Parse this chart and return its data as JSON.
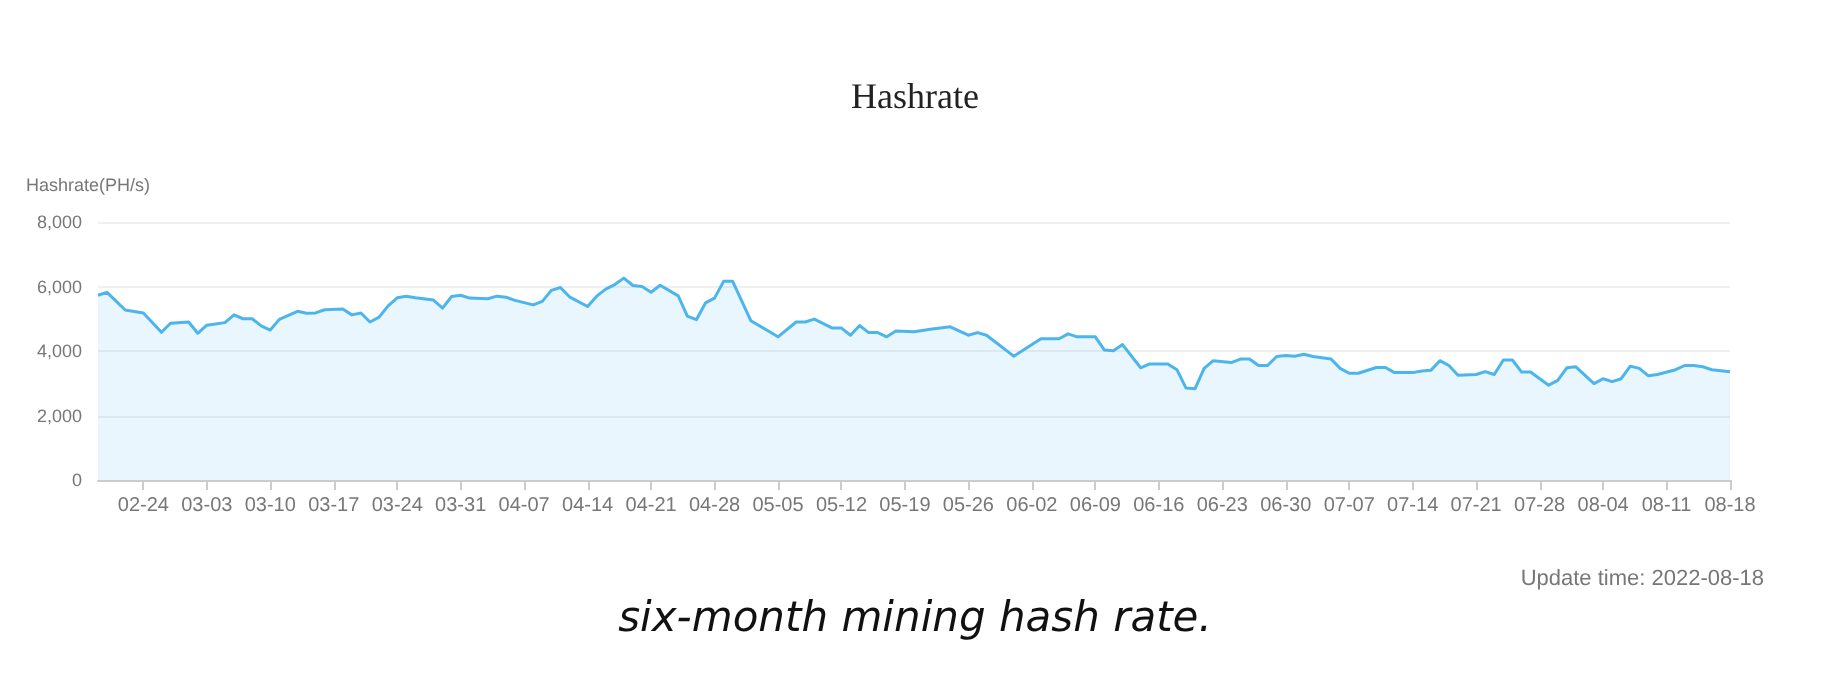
{
  "chart_data": {
    "type": "area",
    "title": "Hashrate",
    "ylabel": "Hashrate(PH/s)",
    "annotations": [
      "Update time: 2022-08-18",
      "six-month mining hash rate."
    ],
    "x": [
      "2022-02-19",
      "2022-02-20",
      "2022-02-22",
      "2022-02-24",
      "2022-02-26",
      "2022-02-27",
      "2022-03-01",
      "2022-03-02",
      "2022-03-03",
      "2022-03-05",
      "2022-03-06",
      "2022-03-07",
      "2022-03-08",
      "2022-03-09",
      "2022-03-10",
      "2022-03-11",
      "2022-03-13",
      "2022-03-14",
      "2022-03-15",
      "2022-03-16",
      "2022-03-18",
      "2022-03-19",
      "2022-03-20",
      "2022-03-21",
      "2022-03-22",
      "2022-03-23",
      "2022-03-24",
      "2022-03-25",
      "2022-03-26",
      "2022-03-28",
      "2022-03-29",
      "2022-03-30",
      "2022-03-31",
      "2022-04-01",
      "2022-04-03",
      "2022-04-04",
      "2022-04-05",
      "2022-04-06",
      "2022-04-08",
      "2022-04-09",
      "2022-04-10",
      "2022-04-11",
      "2022-04-12",
      "2022-04-14",
      "2022-04-15",
      "2022-04-16",
      "2022-04-17",
      "2022-04-18",
      "2022-04-19",
      "2022-04-20",
      "2022-04-21",
      "2022-04-22",
      "2022-04-24",
      "2022-04-25",
      "2022-04-26",
      "2022-04-27",
      "2022-04-28",
      "2022-04-29",
      "2022-04-30",
      "2022-05-02",
      "2022-05-05",
      "2022-05-07",
      "2022-05-08",
      "2022-05-09",
      "2022-05-11",
      "2022-05-12",
      "2022-05-13",
      "2022-05-14",
      "2022-05-15",
      "2022-05-16",
      "2022-05-17",
      "2022-05-18",
      "2022-05-20",
      "2022-05-22",
      "2022-05-24",
      "2022-05-26",
      "2022-05-27",
      "2022-05-28",
      "2022-05-31",
      "2022-06-03",
      "2022-06-05",
      "2022-06-06",
      "2022-06-07",
      "2022-06-09",
      "2022-06-10",
      "2022-06-11",
      "2022-06-12",
      "2022-06-14",
      "2022-06-15",
      "2022-06-17",
      "2022-06-18",
      "2022-06-19",
      "2022-06-20",
      "2022-06-21",
      "2022-06-22",
      "2022-06-24",
      "2022-06-25",
      "2022-06-26",
      "2022-06-27",
      "2022-06-28",
      "2022-06-29",
      "2022-06-30",
      "2022-07-01",
      "2022-07-02",
      "2022-07-03",
      "2022-07-05",
      "2022-07-06",
      "2022-07-07",
      "2022-07-08",
      "2022-07-10",
      "2022-07-11",
      "2022-07-12",
      "2022-07-14",
      "2022-07-15",
      "2022-07-16",
      "2022-07-17",
      "2022-07-18",
      "2022-07-19",
      "2022-07-21",
      "2022-07-22",
      "2022-07-23",
      "2022-07-24",
      "2022-07-25",
      "2022-07-26",
      "2022-07-27",
      "2022-07-29",
      "2022-07-30",
      "2022-07-31",
      "2022-08-01",
      "2022-08-03",
      "2022-08-04",
      "2022-08-05",
      "2022-08-06",
      "2022-08-07",
      "2022-08-08",
      "2022-08-09",
      "2022-08-10",
      "2022-08-12",
      "2022-08-13",
      "2022-08-14",
      "2022-08-15",
      "2022-08-16",
      "2022-08-18"
    ],
    "series": [
      {
        "color": "#4cb5ec",
        "values": [
          5730,
          5820,
          5270,
          5180,
          4580,
          4860,
          4900,
          4550,
          4800,
          4880,
          5120,
          5000,
          5000,
          4780,
          4650,
          4980,
          5230,
          5170,
          5180,
          5280,
          5300,
          5120,
          5180,
          4900,
          5050,
          5400,
          5650,
          5700,
          5650,
          5580,
          5330,
          5690,
          5730,
          5640,
          5620,
          5700,
          5670,
          5570,
          5430,
          5540,
          5880,
          5970,
          5680,
          5380,
          5700,
          5920,
          6060,
          6260,
          6030,
          6000,
          5820,
          6040,
          5710,
          5080,
          4970,
          5490,
          5640,
          6160,
          6160,
          4940,
          4440,
          4900,
          4900,
          4990,
          4710,
          4710,
          4490,
          4790,
          4570,
          4570,
          4440,
          4620,
          4600,
          4680,
          4750,
          4490,
          4570,
          4490,
          3840,
          4380,
          4380,
          4530,
          4440,
          4440,
          4030,
          4010,
          4200,
          3480,
          3600,
          3600,
          3420,
          2850,
          2830,
          3460,
          3700,
          3640,
          3750,
          3750,
          3550,
          3550,
          3830,
          3860,
          3840,
          3900,
          3830,
          3750,
          3460,
          3310,
          3310,
          3490,
          3490,
          3330,
          3330,
          3380,
          3400,
          3700,
          3550,
          3250,
          3270,
          3360,
          3270,
          3720,
          3720,
          3350,
          3350,
          2940,
          3090,
          3480,
          3510,
          2990,
          3140,
          3050,
          3140,
          3530,
          3460,
          3230,
          3270,
          3420,
          3550,
          3550,
          3510,
          3420,
          3360
        ]
      }
    ],
    "xlim": [
      "2022-02-19",
      "2022-08-18"
    ],
    "xticks": [
      {
        "value": "2022-02-24",
        "label": "02-24"
      },
      {
        "value": "2022-03-03",
        "label": "03-03"
      },
      {
        "value": "2022-03-10",
        "label": "03-10"
      },
      {
        "value": "2022-03-17",
        "label": "03-17"
      },
      {
        "value": "2022-03-24",
        "label": "03-24"
      },
      {
        "value": "2022-03-31",
        "label": "03-31"
      },
      {
        "value": "2022-04-07",
        "label": "04-07"
      },
      {
        "value": "2022-04-14",
        "label": "04-14"
      },
      {
        "value": "2022-04-21",
        "label": "04-21"
      },
      {
        "value": "2022-04-28",
        "label": "04-28"
      },
      {
        "value": "2022-05-05",
        "label": "05-05"
      },
      {
        "value": "2022-05-12",
        "label": "05-12"
      },
      {
        "value": "2022-05-19",
        "label": "05-19"
      },
      {
        "value": "2022-05-26",
        "label": "05-26"
      },
      {
        "value": "2022-06-02",
        "label": "06-02"
      },
      {
        "value": "2022-06-09",
        "label": "06-09"
      },
      {
        "value": "2022-06-16",
        "label": "06-16"
      },
      {
        "value": "2022-06-23",
        "label": "06-23"
      },
      {
        "value": "2022-06-30",
        "label": "06-30"
      },
      {
        "value": "2022-07-07",
        "label": "07-07"
      },
      {
        "value": "2022-07-14",
        "label": "07-14"
      },
      {
        "value": "2022-07-21",
        "label": "07-21"
      },
      {
        "value": "2022-07-28",
        "label": "07-28"
      },
      {
        "value": "2022-08-04",
        "label": "08-04"
      },
      {
        "value": "2022-08-11",
        "label": "08-11"
      },
      {
        "value": "2022-08-18",
        "label": "08-18"
      }
    ],
    "ylim": [
      0,
      8000
    ],
    "yticks": [
      0,
      {
        "value": 2000,
        "label": "2,000"
      },
      {
        "value": 4000,
        "label": "4,000"
      },
      {
        "value": 6000,
        "label": "6,000"
      },
      {
        "value": 8000,
        "label": "8,000"
      }
    ],
    "grid": "y"
  }
}
